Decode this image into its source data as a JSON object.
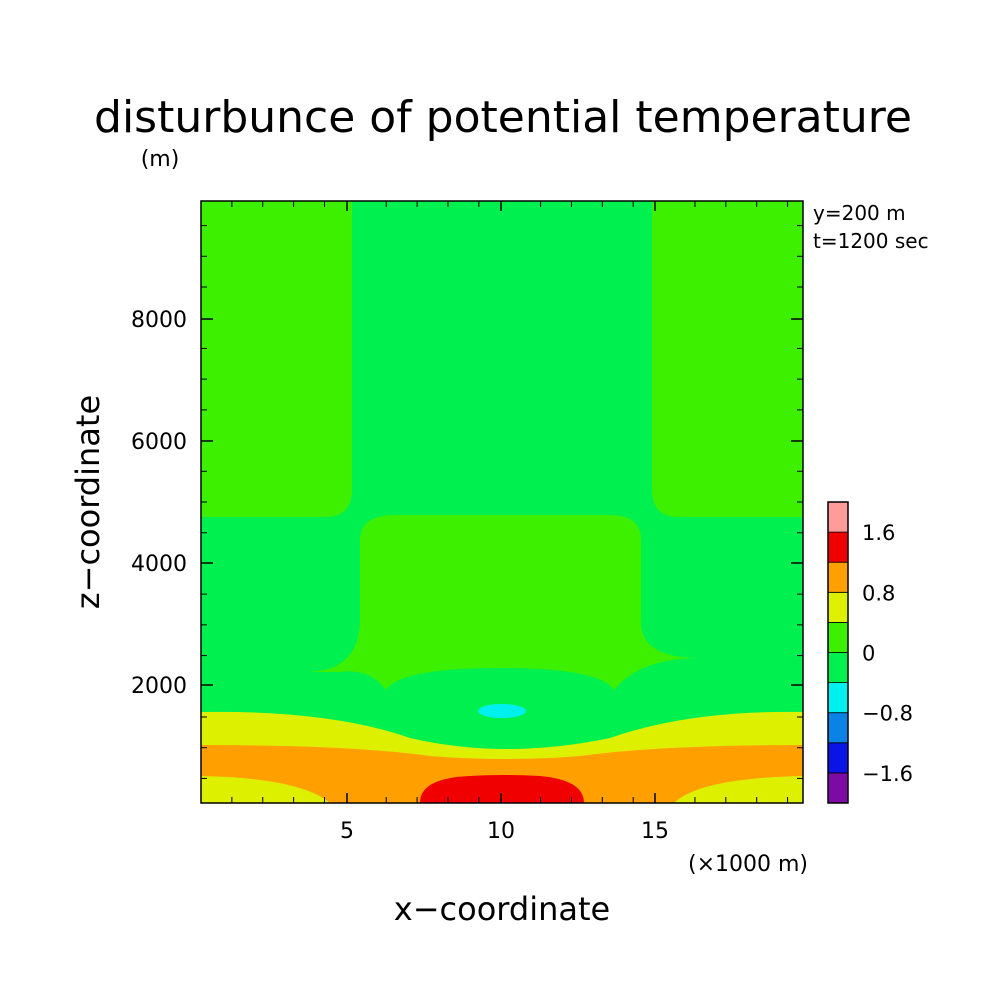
{
  "chart_data": {
    "type": "heatmap",
    "title": "disturbunce of potential temperature",
    "xlabel": "x−coordinate",
    "ylabel": "z−coordinate",
    "x_unit": "(×1000 m)",
    "y_unit": "(m)",
    "annotations": [
      "y=200 m",
      "t=1200 sec"
    ],
    "xlim": [
      0,
      19.5
    ],
    "ylim": [
      100,
      9900
    ],
    "x_ticks": [
      {
        "value": 5,
        "label": "5"
      },
      {
        "value": 10,
        "label": "10"
      },
      {
        "value": 15,
        "label": "15"
      }
    ],
    "y_ticks": [
      {
        "value": 2000,
        "label": "2000"
      },
      {
        "value": 4000,
        "label": "4000"
      },
      {
        "value": 6000,
        "label": "6000"
      },
      {
        "value": 8000,
        "label": "8000"
      }
    ],
    "colorbar": {
      "levels": [
        -2.0,
        -1.6,
        -1.2,
        -0.8,
        -0.4,
        0,
        0.4,
        0.8,
        1.2,
        1.6,
        2.0
      ],
      "colors": [
        "#7d0aa5",
        "#0a14e6",
        "#0a82e6",
        "#00f0f0",
        "#00f050",
        "#3cf000",
        "#dcf000",
        "#ffa000",
        "#f00000",
        "#ff9b9b"
      ],
      "labels": [
        {
          "value": -1.6,
          "label": "−1.6"
        },
        {
          "value": -0.8,
          "label": "−0.8"
        },
        {
          "value": 0,
          "label": "0"
        },
        {
          "value": 0.8,
          "label": "0.8"
        },
        {
          "value": 1.6,
          "label": "1.6"
        }
      ]
    },
    "regions": [
      {
        "level": "0.8 to 1.2",
        "shape": "bottom layer",
        "x_range": [
          0,
          19.5
        ],
        "z_range": [
          100,
          1000
        ]
      },
      {
        "level": "1.2 to 1.6",
        "shape": "bottom-centre bump",
        "x_range": [
          7.2,
          12.7
        ],
        "z_range": [
          100,
          550
        ]
      },
      {
        "level": "0.4 to 0.8",
        "shape": "lower band",
        "x_range": [
          0,
          19.5
        ],
        "z_range": [
          100,
          1550
        ]
      },
      {
        "level": "-0.4 to 0",
        "shape": "surrounding field",
        "x_range": [
          0,
          19.5
        ],
        "z_range": [
          100,
          9900
        ]
      },
      {
        "level": "0 to 0.4",
        "shape": "side columns and central block",
        "z_range": [
          2200,
          9900
        ]
      },
      {
        "level": "-0.4 to 0",
        "shape": "central ellipse",
        "x_range": [
          6.1,
          13.6
        ],
        "z_range": [
          1100,
          2300
        ]
      },
      {
        "level": "-0.8 to -0.4",
        "shape": "small central cell",
        "x_range": [
          9.2,
          10.7
        ],
        "z_range": [
          1450,
          1700
        ]
      }
    ]
  }
}
